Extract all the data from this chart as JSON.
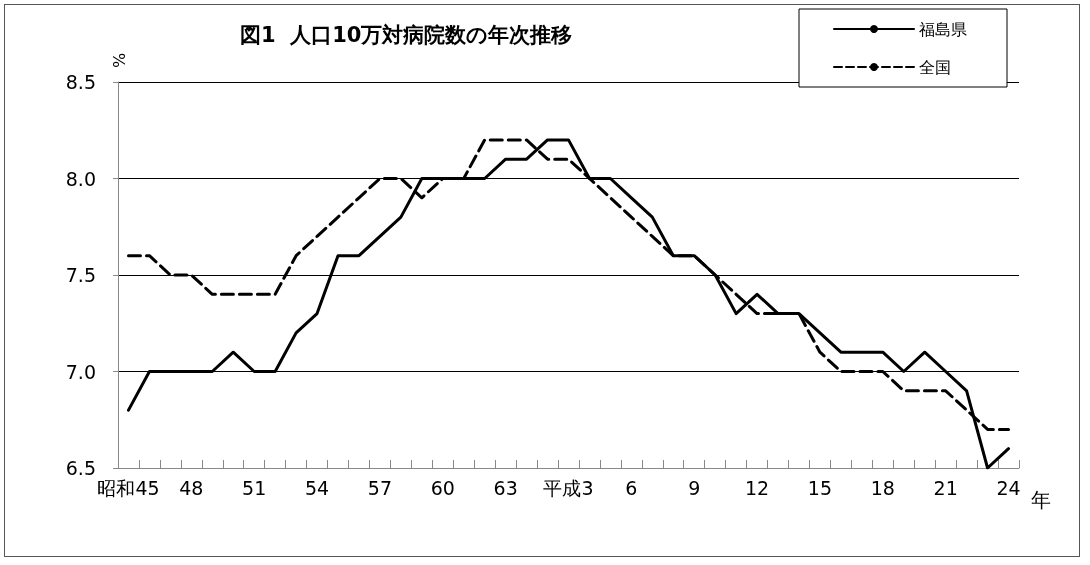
{
  "chart_data": {
    "type": "line",
    "title": "図1  人口10万対病院数の年次推移",
    "ylabel": "%",
    "xlabel": "年",
    "categories": [
      "昭和45",
      null,
      null,
      "48",
      null,
      null,
      "51",
      null,
      null,
      "54",
      null,
      null,
      "57",
      null,
      null,
      "60",
      null,
      null,
      "63",
      null,
      null,
      "平成3",
      null,
      null,
      "6",
      null,
      null,
      "9",
      null,
      null,
      "12",
      null,
      null,
      "15",
      null,
      null,
      "18",
      null,
      null,
      "21",
      null,
      null,
      "24"
    ],
    "series": [
      {
        "name": "福島県",
        "color": "#000000",
        "line_style": "solid",
        "values": [
          6.8,
          7.0,
          7.0,
          7.0,
          7.0,
          7.1,
          7.0,
          7.0,
          7.2,
          7.3,
          7.6,
          7.6,
          7.7,
          7.8,
          8.0,
          8.0,
          8.0,
          8.0,
          8.1,
          8.1,
          8.2,
          8.2,
          8.0,
          8.0,
          7.9,
          7.8,
          7.6,
          7.6,
          7.5,
          7.3,
          7.4,
          7.3,
          7.3,
          7.2,
          7.1,
          7.1,
          7.1,
          7.0,
          7.1,
          7.0,
          6.9,
          6.5,
          6.6
        ]
      },
      {
        "name": "全国",
        "color": "#000000",
        "line_style": "dashed",
        "values": [
          7.6,
          7.6,
          7.5,
          7.5,
          7.4,
          7.4,
          7.4,
          7.4,
          7.6,
          7.7,
          7.8,
          7.9,
          8.0,
          8.0,
          7.9,
          8.0,
          8.0,
          8.2,
          8.2,
          8.2,
          8.1,
          8.1,
          8.0,
          7.9,
          7.8,
          7.7,
          7.6,
          7.6,
          7.5,
          7.4,
          7.3,
          7.3,
          7.3,
          7.1,
          7.0,
          7.0,
          7.0,
          6.9,
          6.9,
          6.9,
          6.8,
          6.7,
          6.7
        ]
      }
    ],
    "ylim": [
      6.5,
      8.5
    ],
    "yticks": [
      6.5,
      {
        "value": 7,
        "label": "7.0"
      },
      7.5,
      {
        "value": 8,
        "label": "8.0"
      },
      8.5
    ],
    "grid": "y",
    "legend": "top right",
    "marker": "none"
  }
}
